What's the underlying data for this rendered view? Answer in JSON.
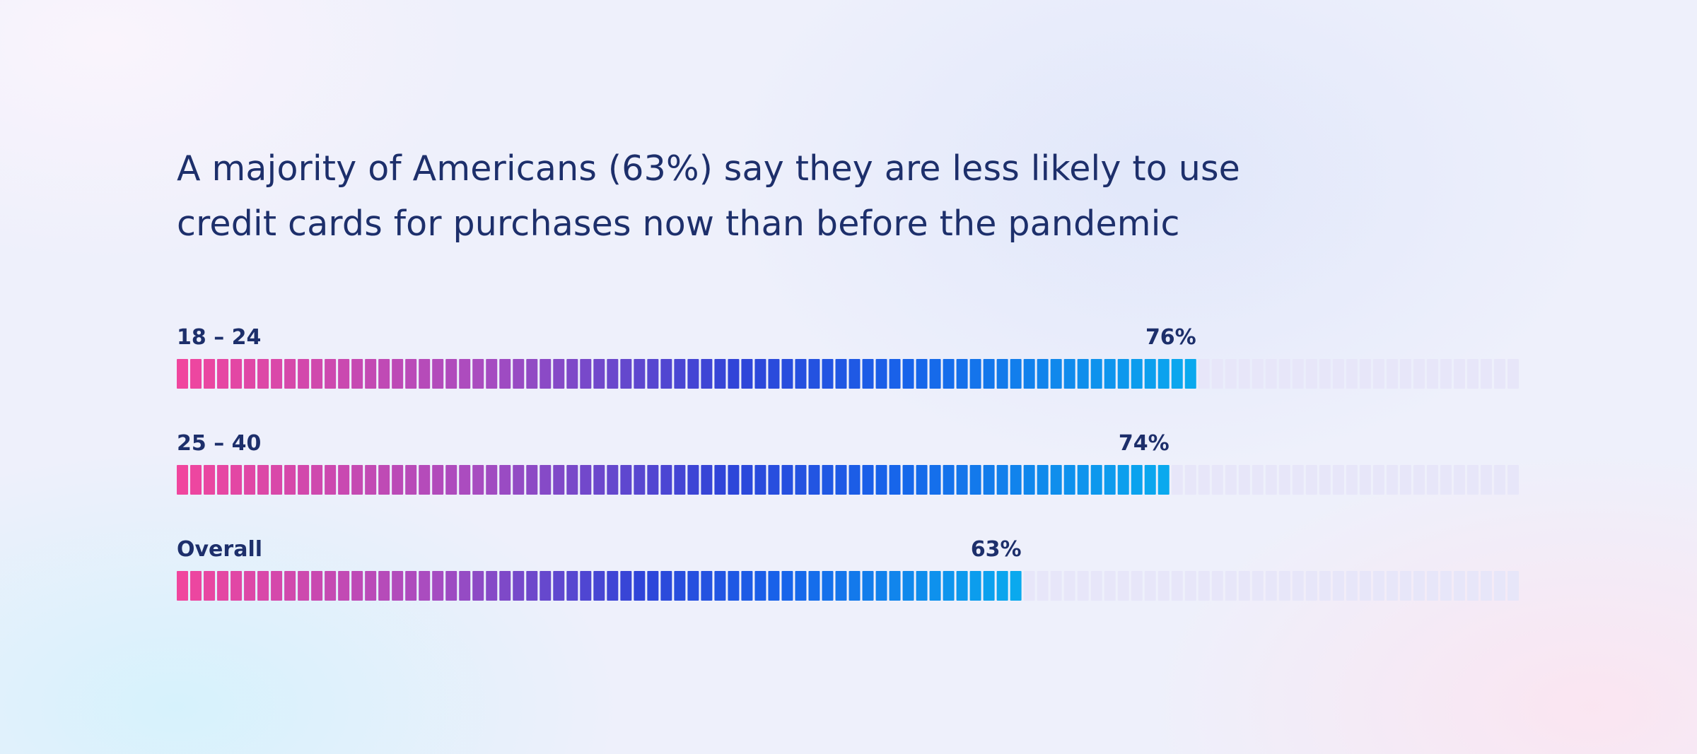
{
  "title_lines": [
    "A majority of Americans (63%) say they are less likely to use",
    "credit cards for purchases now than before the pandemic"
  ],
  "colors": {
    "text": "#1d2f6b",
    "gradient_start": "#f0469e",
    "gradient_mid_1": "#a84cc0",
    "gradient_mid_2": "#2f44d8",
    "gradient_mid_3": "#1763ea",
    "gradient_end": "#0aa9ee",
    "empty_segment": "#e7e6f9"
  },
  "chart_data": {
    "type": "bar",
    "orientation": "horizontal",
    "title": "A majority of Americans (63%) say they are less likely to use credit cards for purchases now than before the pandemic",
    "categories": [
      "18 – 24",
      "25 – 40",
      "Overall"
    ],
    "values": [
      76,
      74,
      63
    ],
    "value_labels": [
      "76%",
      "74%",
      "63%"
    ],
    "xlim": [
      0,
      100
    ],
    "unit": "%",
    "segments_per_bar": 100,
    "grid": false,
    "legend": "none"
  }
}
